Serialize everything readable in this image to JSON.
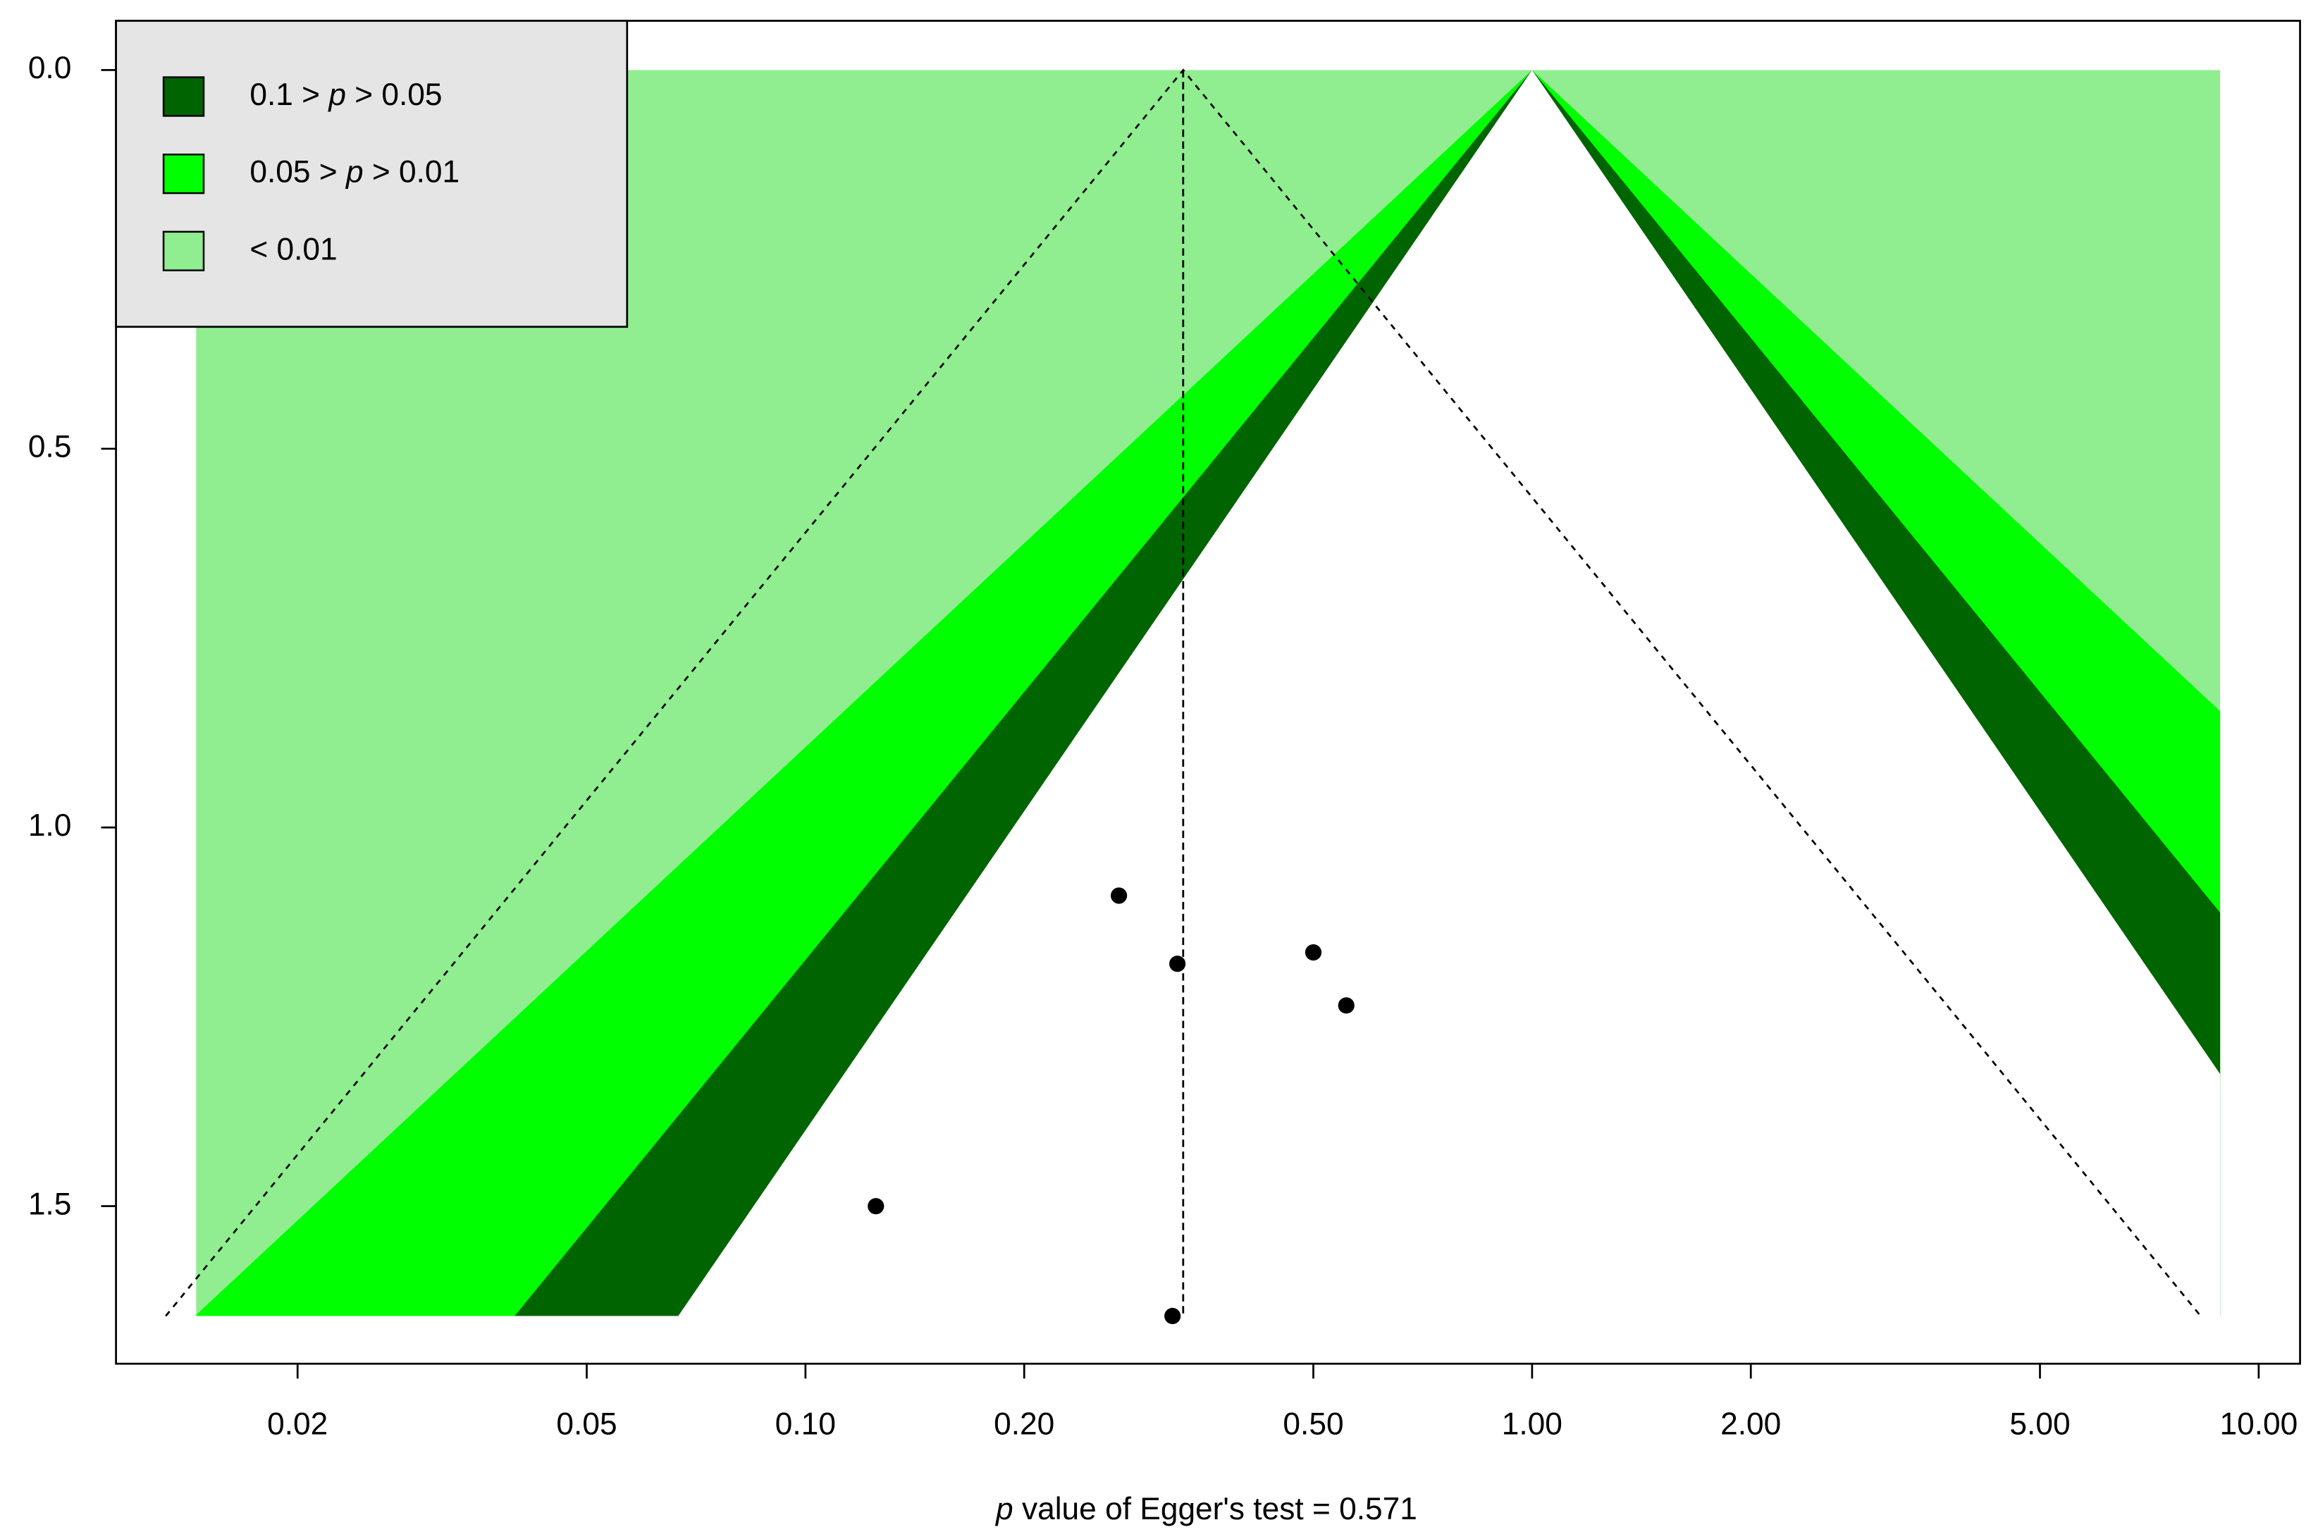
{
  "chart_data": {
    "type": "scatter",
    "x": [
      0.27,
      0.325,
      0.5,
      0.555,
      0.125,
      0.32
    ],
    "values": [
      1.09,
      1.18,
      1.165,
      1.235,
      1.5,
      1.645
    ],
    "color": "#000000",
    "x_log": true,
    "y_inverted": true,
    "xlim": [
      0.01125,
      11.4
    ],
    "ylim": [
      -0.065,
      1.708
    ],
    "xticks": [
      0.02,
      0.05,
      {
        "value": 0.1,
        "label": "0.10"
      },
      {
        "value": 0.2,
        "label": "0.20"
      },
      {
        "value": 0.5,
        "label": "0.50"
      },
      {
        "value": 1,
        "label": "1.00"
      },
      {
        "value": 2,
        "label": "2.00"
      },
      {
        "value": 5,
        "label": "5.00"
      },
      {
        "value": 10,
        "label": "10.00"
      }
    ],
    "yticks": [
      {
        "value": 0,
        "label": "0.0"
      },
      {
        "value": 0.5,
        "label": "0.5"
      },
      {
        "value": 1,
        "label": "1.0"
      },
      {
        "value": 1.5,
        "label": "1.5"
      }
    ],
    "x_label": {
      "italic": "p",
      "text": " value of Egger's test = 0.571"
    },
    "contour_center": 1,
    "contour_levels": [
      0.1,
      0.05,
      0.01
    ],
    "contour_xlim": [
      0.0145,
      8.85
    ],
    "estimate": 0.331,
    "ci_level": 0.05,
    "legend_position": "top-left",
    "legend": [
      {
        "parts": [
          "0.1 > ",
          "p",
          " > 0.05"
        ],
        "color": "#006400"
      },
      {
        "parts": [
          "0.05 > ",
          "p",
          " > 0.01"
        ],
        "color": "#00ff00"
      },
      {
        "parts": [
          "< 0.01"
        ],
        "color": "#90ee90"
      }
    ]
  }
}
